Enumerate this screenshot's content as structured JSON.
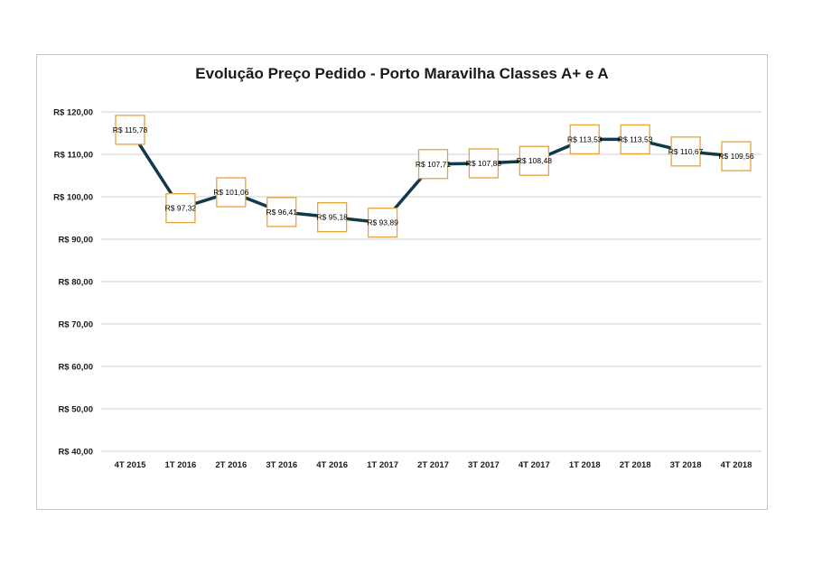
{
  "chart_data": {
    "type": "line",
    "title": "Evolução Preço Pedido - Porto Maravilha Classes A+ e A",
    "xlabel": "",
    "ylabel": "",
    "categories": [
      "4T 2015",
      "1T 2016",
      "2T 2016",
      "3T 2016",
      "4T 2016",
      "1T 2017",
      "2T 2017",
      "3T 2017",
      "4T 2017",
      "1T 2018",
      "2T 2018",
      "3T 2018",
      "4T 2018"
    ],
    "series": [
      {
        "name": "Preço Pedido",
        "values": [
          115.78,
          97.32,
          101.06,
          96.41,
          95.18,
          93.89,
          107.71,
          107.88,
          108.48,
          113.53,
          113.53,
          110.67,
          109.56
        ]
      }
    ],
    "data_labels": [
      "R$ 115,78",
      "R$ 97,32",
      "R$ 101,06",
      "R$ 96,41",
      "R$ 95,18",
      "R$ 93,89",
      "R$ 107,71",
      "R$ 107,88",
      "R$ 108,48",
      "R$ 113,53",
      "R$ 113,53",
      "R$ 110,67",
      "R$ 109,56"
    ],
    "ylim": [
      40,
      120
    ],
    "yticks": [
      40,
      50,
      60,
      70,
      80,
      90,
      100,
      110,
      120
    ],
    "ytick_labels": [
      "R$ 40,00",
      "R$ 50,00",
      "R$ 60,00",
      "R$ 70,00",
      "R$ 80,00",
      "R$ 90,00",
      "R$ 100,00",
      "R$ 110,00",
      "R$ 120,00"
    ],
    "grid": true,
    "legend": "none",
    "colors": {
      "line": "#0f3a4a",
      "marker_border": "#e8a33a",
      "marker_fill": "#ffffff",
      "grid": "#d0d0d0"
    }
  }
}
